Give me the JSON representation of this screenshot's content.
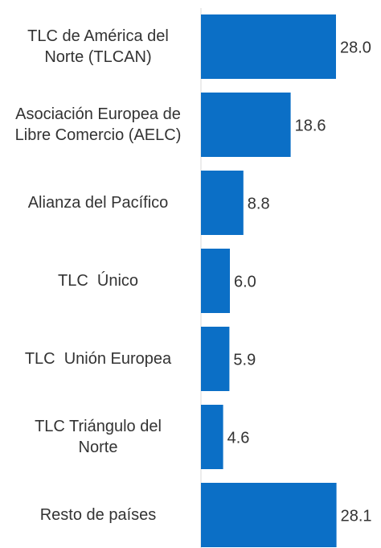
{
  "chart_data": {
    "type": "barh",
    "categories": [
      "TLC de América del Norte (TLCAN)",
      "Asociación Europea de Libre Comercio (AELC)",
      "Alianza del Pacífico",
      "TLC  Único",
      "TLC  Unión Europea",
      "TLC Triángulo del Norte",
      "Resto de países"
    ],
    "values": [
      28.0,
      18.6,
      8.8,
      6.0,
      5.9,
      4.6,
      28.1
    ],
    "value_labels": [
      "28.0",
      "18.6",
      "8.8",
      "6.0",
      "5.9",
      "4.6",
      "28.1"
    ],
    "color": "#0b6fc6",
    "xlim": [
      0,
      30
    ]
  }
}
